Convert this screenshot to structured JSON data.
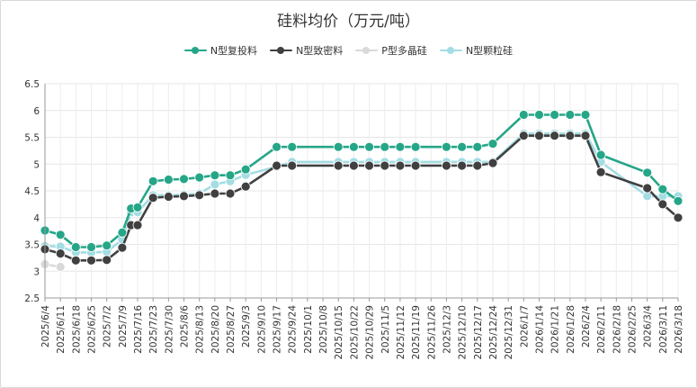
{
  "chart_data": {
    "type": "line",
    "title": "硅料均价（万元/吨）",
    "xlabel": "",
    "ylabel": "",
    "ylim": [
      2.5,
      6.5
    ],
    "yticks": [
      "6.5",
      "6",
      "5.5",
      "5",
      "4.5",
      "4",
      "3.5",
      "3",
      "2.5"
    ],
    "grid": true,
    "legend_position": "top-center",
    "categories": [
      "2025/6/4",
      "2025/6/11",
      "2025/6/18",
      "2025/6/25",
      "2025/7/2",
      "2025/7/9",
      "2025/7/16",
      "2025/7/23",
      "2025/7/30",
      "2025/8/6",
      "2025/8/13",
      "2025/8/20",
      "2025/8/27",
      "2025/9/3",
      "2025/9/10",
      "2025/9/17",
      "2025/9/24",
      "2025/10/1",
      "2025/10/8",
      "2025/10/15",
      "2025/10/22",
      "2025/10/29",
      "2025/11/5",
      "2025/11/12",
      "2025/11/19",
      "2025/11/26",
      "2025/12/3",
      "2025/12/10",
      "2025/12/17",
      "2025/12/24",
      "2025/12/31",
      "2026/1/7",
      "2026/1/14",
      "2026/1/21",
      "2026/1/28",
      "2026/2/4",
      "2026/2/11",
      "2026/2/18",
      "2026/2/25",
      "2026/3/4",
      "2026/3/11",
      "2026/3/18"
    ],
    "series": [
      {
        "name": "N型复投料",
        "color": "#26a688",
        "points": [
          [
            "2025/6/4",
            3.76
          ],
          [
            "2025/6/11",
            3.68
          ],
          [
            "2025/6/18",
            3.45
          ],
          [
            "2025/6/25",
            3.45
          ],
          [
            "2025/7/2",
            3.48
          ],
          [
            "2025/7/9",
            3.72
          ],
          [
            "2025/7/13",
            4.17
          ],
          [
            "2025/7/16",
            4.19
          ],
          [
            "2025/7/23",
            4.68
          ],
          [
            "2025/7/30",
            4.71
          ],
          [
            "2025/8/6",
            4.72
          ],
          [
            "2025/8/13",
            4.75
          ],
          [
            "2025/8/20",
            4.79
          ],
          [
            "2025/8/27",
            4.79
          ],
          [
            "2025/9/3",
            4.9
          ],
          [
            "2025/9/17",
            5.32
          ],
          [
            "2025/9/24",
            5.32
          ],
          [
            "2025/10/15",
            5.32
          ],
          [
            "2025/10/22",
            5.32
          ],
          [
            "2025/10/29",
            5.32
          ],
          [
            "2025/11/5",
            5.32
          ],
          [
            "2025/11/12",
            5.32
          ],
          [
            "2025/11/19",
            5.32
          ],
          [
            "2025/12/3",
            5.32
          ],
          [
            "2025/12/10",
            5.32
          ],
          [
            "2025/12/17",
            5.32
          ],
          [
            "2025/12/24",
            5.38
          ],
          [
            "2026/1/7",
            5.92
          ],
          [
            "2026/1/14",
            5.92
          ],
          [
            "2026/1/21",
            5.92
          ],
          [
            "2026/1/28",
            5.92
          ],
          [
            "2026/2/4",
            5.92
          ],
          [
            "2026/2/11",
            5.17
          ],
          [
            "2026/3/4",
            4.84
          ],
          [
            "2026/3/11",
            4.53
          ],
          [
            "2026/3/18",
            4.31
          ]
        ]
      },
      {
        "name": "N型致密料",
        "color": "#404040",
        "points": [
          [
            "2025/6/4",
            3.41
          ],
          [
            "2025/6/11",
            3.33
          ],
          [
            "2025/6/18",
            3.2
          ],
          [
            "2025/6/25",
            3.2
          ],
          [
            "2025/7/2",
            3.21
          ],
          [
            "2025/7/9",
            3.44
          ],
          [
            "2025/7/13",
            3.86
          ],
          [
            "2025/7/16",
            3.86
          ],
          [
            "2025/7/23",
            4.37
          ],
          [
            "2025/7/30",
            4.39
          ],
          [
            "2025/8/6",
            4.4
          ],
          [
            "2025/8/13",
            4.42
          ],
          [
            "2025/8/20",
            4.45
          ],
          [
            "2025/8/27",
            4.45
          ],
          [
            "2025/9/3",
            4.58
          ],
          [
            "2025/9/17",
            4.97
          ],
          [
            "2025/9/24",
            4.97
          ],
          [
            "2025/10/15",
            4.97
          ],
          [
            "2025/10/22",
            4.97
          ],
          [
            "2025/10/29",
            4.97
          ],
          [
            "2025/11/5",
            4.97
          ],
          [
            "2025/11/12",
            4.97
          ],
          [
            "2025/11/19",
            4.97
          ],
          [
            "2025/12/3",
            4.97
          ],
          [
            "2025/12/10",
            4.97
          ],
          [
            "2025/12/17",
            4.97
          ],
          [
            "2025/12/24",
            5.02
          ],
          [
            "2026/1/7",
            5.53
          ],
          [
            "2026/1/14",
            5.53
          ],
          [
            "2026/1/21",
            5.53
          ],
          [
            "2026/1/28",
            5.53
          ],
          [
            "2026/2/4",
            5.53
          ],
          [
            "2026/2/11",
            4.85
          ],
          [
            "2026/3/4",
            4.55
          ],
          [
            "2026/3/11",
            4.25
          ],
          [
            "2026/3/18",
            4.0
          ]
        ]
      },
      {
        "name": "P型多晶硅",
        "color": "#d9d9d9",
        "points": [
          [
            "2025/6/4",
            3.13
          ],
          [
            "2025/6/11",
            3.08
          ]
        ]
      },
      {
        "name": "N型颗粒硅",
        "color": "#a3dde3",
        "points": [
          [
            "2025/6/4",
            3.47
          ],
          [
            "2025/6/11",
            3.46
          ],
          [
            "2025/6/18",
            3.35
          ],
          [
            "2025/6/25",
            3.35
          ],
          [
            "2025/7/2",
            3.36
          ],
          [
            "2025/7/9",
            3.59
          ],
          [
            "2025/7/13",
            4.1
          ],
          [
            "2025/7/16",
            4.1
          ],
          [
            "2025/7/23",
            4.42
          ],
          [
            "2025/7/30",
            4.42
          ],
          [
            "2025/8/6",
            4.43
          ],
          [
            "2025/8/13",
            4.45
          ],
          [
            "2025/8/20",
            4.62
          ],
          [
            "2025/8/27",
            4.68
          ],
          [
            "2025/9/3",
            4.8
          ],
          [
            "2025/9/17",
            4.95
          ],
          [
            "2025/9/24",
            5.04
          ],
          [
            "2025/10/15",
            5.04
          ],
          [
            "2025/10/22",
            5.04
          ],
          [
            "2025/10/29",
            5.04
          ],
          [
            "2025/11/5",
            5.04
          ],
          [
            "2025/11/12",
            5.04
          ],
          [
            "2025/11/19",
            5.04
          ],
          [
            "2025/12/3",
            5.04
          ],
          [
            "2025/12/10",
            5.04
          ],
          [
            "2025/12/17",
            5.04
          ],
          [
            "2025/12/24",
            5.04
          ],
          [
            "2026/1/7",
            5.57
          ],
          [
            "2026/1/14",
            5.57
          ],
          [
            "2026/1/21",
            5.57
          ],
          [
            "2026/1/28",
            5.57
          ],
          [
            "2026/2/4",
            5.57
          ],
          [
            "2026/2/11",
            5.04
          ],
          [
            "2026/3/4",
            4.4
          ],
          [
            "2026/3/11",
            4.4
          ],
          [
            "2026/3/18",
            4.4
          ]
        ]
      }
    ]
  }
}
